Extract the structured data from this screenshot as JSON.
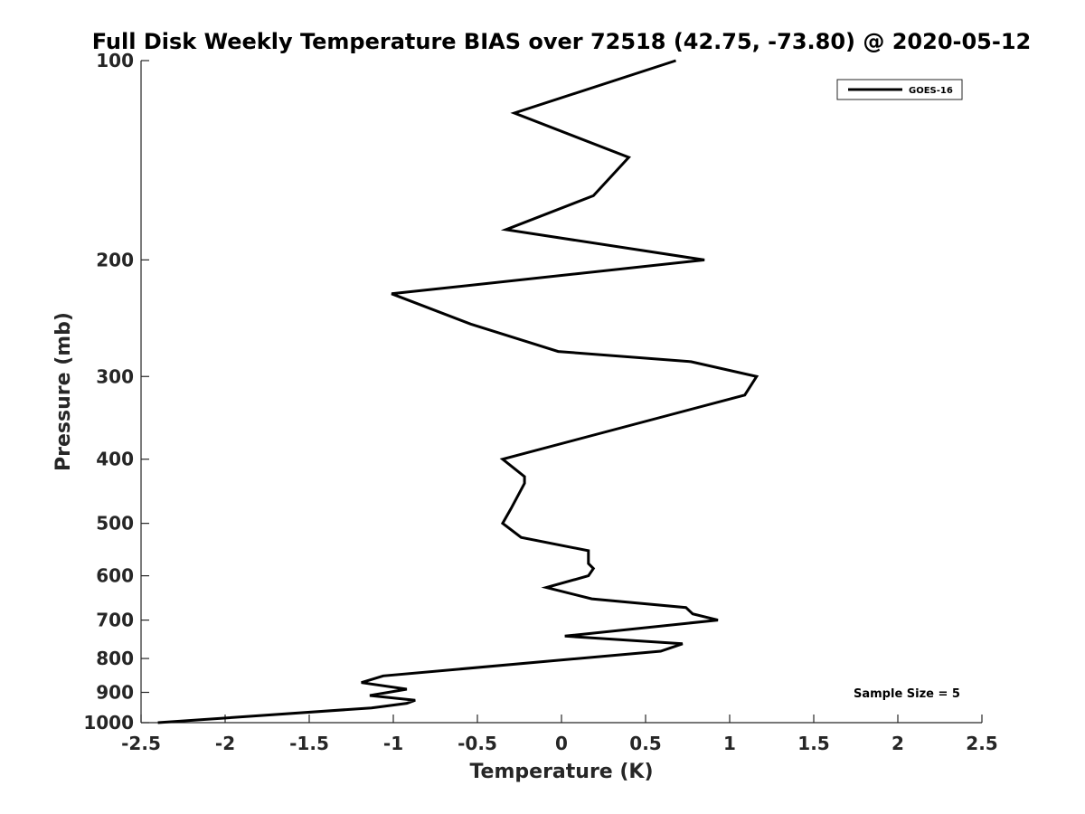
{
  "chart_data": {
    "type": "line",
    "title": "Full Disk Weekly Temperature BIAS over 72518 (42.75, -73.80) @ 2020-05-12",
    "xlabel": "Temperature (K)",
    "ylabel": "Pressure (mb)",
    "xlim": [
      -2.5,
      2.5
    ],
    "ylim": [
      1000,
      100
    ],
    "yscale": "log",
    "y_reversed": true,
    "x_ticks": [
      -2.5,
      -2,
      -1.5,
      -1,
      -0.5,
      0,
      0.5,
      1,
      1.5,
      2,
      2.5
    ],
    "x_tick_labels": [
      "-2.5",
      "-2",
      "-1.5",
      "-1",
      "-0.5",
      "0",
      "0.5",
      "1",
      "1.5",
      "2",
      "2.5"
    ],
    "y_ticks": [
      100,
      200,
      300,
      400,
      500,
      600,
      700,
      800,
      900,
      1000
    ],
    "y_tick_labels": [
      "100",
      "200",
      "300",
      "400",
      "500",
      "600",
      "700",
      "800",
      "900",
      "1000"
    ],
    "grid": false,
    "legend_position": "top-right",
    "line_color": "#000000",
    "series": [
      {
        "name": "GOES-16",
        "points": [
          {
            "x": 0.68,
            "p": 100
          },
          {
            "x": -0.28,
            "p": 120
          },
          {
            "x": 0.4,
            "p": 140
          },
          {
            "x": 0.19,
            "p": 160
          },
          {
            "x": -0.33,
            "p": 180
          },
          {
            "x": 0.85,
            "p": 200
          },
          {
            "x": -1.01,
            "p": 225
          },
          {
            "x": -0.54,
            "p": 250
          },
          {
            "x": -0.02,
            "p": 275
          },
          {
            "x": 0.77,
            "p": 285
          },
          {
            "x": 1.16,
            "p": 300
          },
          {
            "x": 1.09,
            "p": 320
          },
          {
            "x": -0.35,
            "p": 400
          },
          {
            "x": -0.22,
            "p": 425
          },
          {
            "x": -0.22,
            "p": 435
          },
          {
            "x": -0.3,
            "p": 475
          },
          {
            "x": -0.35,
            "p": 500
          },
          {
            "x": -0.24,
            "p": 525
          },
          {
            "x": 0.16,
            "p": 550
          },
          {
            "x": 0.16,
            "p": 575
          },
          {
            "x": 0.19,
            "p": 585
          },
          {
            "x": 0.16,
            "p": 600
          },
          {
            "x": -0.09,
            "p": 625
          },
          {
            "x": 0.18,
            "p": 650
          },
          {
            "x": 0.74,
            "p": 670
          },
          {
            "x": 0.78,
            "p": 685
          },
          {
            "x": 0.93,
            "p": 700
          },
          {
            "x": 0.02,
            "p": 740
          },
          {
            "x": 0.72,
            "p": 760
          },
          {
            "x": 0.59,
            "p": 780
          },
          {
            "x": -1.06,
            "p": 850
          },
          {
            "x": -1.19,
            "p": 870
          },
          {
            "x": -0.92,
            "p": 890
          },
          {
            "x": -1.14,
            "p": 910
          },
          {
            "x": -0.87,
            "p": 925
          },
          {
            "x": -0.92,
            "p": 935
          },
          {
            "x": -1.13,
            "p": 950
          },
          {
            "x": -2.4,
            "p": 1000
          }
        ]
      }
    ],
    "annotation": "Sample Size = 5"
  }
}
